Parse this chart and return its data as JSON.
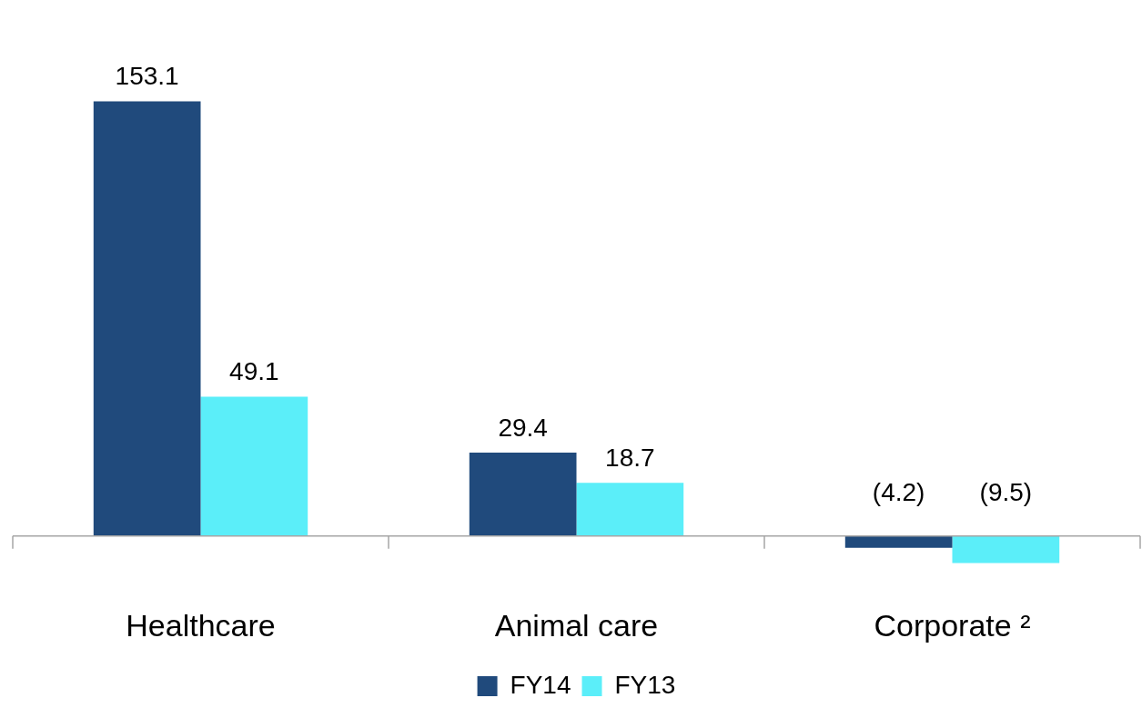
{
  "chart_data": {
    "type": "bar",
    "categories": [
      "Healthcare",
      "Animal care",
      "Corporate ²"
    ],
    "series": [
      {
        "name": "FY14",
        "color": "#204a7c",
        "values": [
          153.1,
          29.4,
          -4.2
        ],
        "value_labels": [
          "153.1",
          "29.4",
          "(4.2)"
        ]
      },
      {
        "name": "FY13",
        "color": "#5beef9",
        "values": [
          49.1,
          18.7,
          -9.5
        ],
        "value_labels": [
          "49.1",
          "18.7",
          "(9.5)"
        ]
      }
    ],
    "legend": "bottom",
    "tick_labels": "x"
  }
}
